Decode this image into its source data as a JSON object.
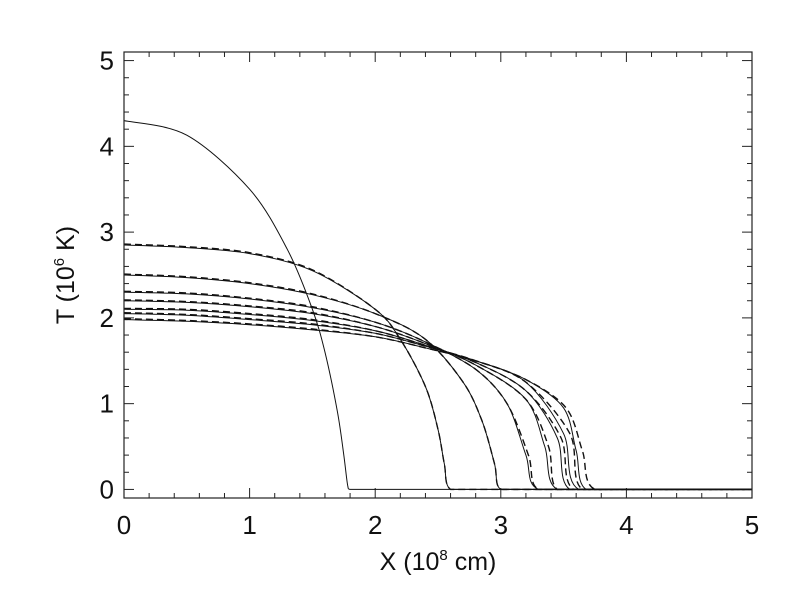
{
  "chart_data": {
    "type": "line",
    "xlabel": {
      "base": "X (10",
      "sup": "8",
      "tail": " cm)"
    },
    "ylabel": {
      "base": "T (10",
      "sup": "6",
      "tail": " K)"
    },
    "xlim": [
      0,
      5
    ],
    "ylim": [
      -0.1,
      5.1
    ],
    "xticks": [
      0,
      1,
      2,
      3,
      4,
      5
    ],
    "yticks": [
      0,
      1,
      2,
      3,
      4,
      5
    ],
    "grid": false,
    "series": [
      {
        "style": "solid",
        "x": [
          0,
          0.5,
          1.0,
          1.3,
          1.5,
          1.6,
          1.7,
          1.75,
          1.78,
          1.8,
          5.0
        ],
        "y": [
          4.3,
          4.13,
          3.5,
          2.8,
          2.1,
          1.6,
          0.9,
          0.4,
          0.05,
          0.0,
          0.0
        ]
      },
      {
        "style": "solid",
        "x": [
          0,
          0.5,
          1.0,
          1.5,
          2.0,
          2.2,
          2.4,
          2.5,
          2.55,
          2.6,
          5.0
        ],
        "y": [
          2.85,
          2.82,
          2.75,
          2.55,
          2.1,
          1.75,
          1.2,
          0.7,
          0.3,
          0.0,
          0.0
        ]
      },
      {
        "style": "solid",
        "x": [
          0,
          0.5,
          1.0,
          1.5,
          2.0,
          2.4,
          2.7,
          2.85,
          2.95,
          3.0,
          5.0
        ],
        "y": [
          2.5,
          2.47,
          2.4,
          2.27,
          2.05,
          1.75,
          1.25,
          0.8,
          0.3,
          0.0,
          0.0
        ]
      },
      {
        "style": "solid",
        "x": [
          0,
          0.5,
          1.0,
          1.5,
          2.0,
          2.4,
          2.8,
          3.05,
          3.2,
          3.3,
          5.0
        ],
        "y": [
          2.3,
          2.28,
          2.22,
          2.12,
          1.95,
          1.72,
          1.4,
          1.0,
          0.4,
          0.0,
          0.0
        ]
      },
      {
        "style": "solid",
        "x": [
          0,
          0.5,
          1.0,
          1.5,
          2.0,
          2.4,
          2.8,
          3.2,
          3.35,
          3.45,
          5.0
        ],
        "y": [
          2.2,
          2.18,
          2.13,
          2.05,
          1.9,
          1.7,
          1.45,
          1.05,
          0.5,
          0.0,
          0.0
        ]
      },
      {
        "style": "solid",
        "x": [
          0,
          0.5,
          1.0,
          1.5,
          2.0,
          2.4,
          2.8,
          3.2,
          3.45,
          3.55,
          5.0
        ],
        "y": [
          2.1,
          2.09,
          2.04,
          1.97,
          1.85,
          1.68,
          1.48,
          1.15,
          0.6,
          0.0,
          0.0
        ]
      },
      {
        "style": "solid",
        "x": [
          0,
          0.5,
          1.0,
          1.5,
          2.0,
          2.4,
          2.8,
          3.2,
          3.5,
          3.62,
          5.0
        ],
        "y": [
          2.05,
          2.03,
          1.98,
          1.92,
          1.82,
          1.67,
          1.5,
          1.25,
          0.65,
          0.0,
          0.0
        ]
      },
      {
        "style": "solid",
        "x": [
          0,
          0.5,
          1.0,
          1.5,
          2.0,
          2.4,
          2.8,
          3.2,
          3.5,
          3.6,
          3.68,
          5.0
        ],
        "y": [
          1.98,
          1.96,
          1.92,
          1.86,
          1.78,
          1.65,
          1.5,
          1.28,
          0.95,
          0.45,
          0.0,
          0.0
        ]
      },
      {
        "style": "dashed",
        "x": [
          0,
          0.5,
          1.0,
          1.5,
          2.0,
          2.2,
          2.4,
          2.5,
          2.55,
          2.6,
          5.0
        ],
        "y": [
          2.86,
          2.83,
          2.76,
          2.56,
          2.1,
          1.75,
          1.2,
          0.7,
          0.3,
          0.0,
          0.0
        ]
      },
      {
        "style": "dashed",
        "x": [
          0,
          0.5,
          1.0,
          1.5,
          2.0,
          2.4,
          2.7,
          2.85,
          2.95,
          3.0,
          5.0
        ],
        "y": [
          2.51,
          2.48,
          2.41,
          2.28,
          2.05,
          1.75,
          1.25,
          0.8,
          0.3,
          0.0,
          0.0
        ]
      },
      {
        "style": "dashed",
        "x": [
          0,
          0.5,
          1.0,
          1.5,
          2.0,
          2.4,
          2.8,
          3.05,
          3.22,
          3.3,
          5.0
        ],
        "y": [
          2.31,
          2.29,
          2.23,
          2.13,
          1.95,
          1.72,
          1.4,
          1.0,
          0.4,
          0.0,
          0.0
        ]
      },
      {
        "style": "dashed",
        "x": [
          0,
          0.5,
          1.0,
          1.5,
          2.0,
          2.4,
          2.8,
          3.2,
          3.38,
          3.45,
          5.0
        ],
        "y": [
          2.21,
          2.19,
          2.14,
          2.06,
          1.9,
          1.7,
          1.45,
          1.05,
          0.5,
          0.0,
          0.0
        ]
      },
      {
        "style": "dashed",
        "x": [
          0,
          0.5,
          1.0,
          1.5,
          2.0,
          2.4,
          2.8,
          3.2,
          3.48,
          3.58,
          5.0
        ],
        "y": [
          2.11,
          2.1,
          2.05,
          1.98,
          1.85,
          1.68,
          1.48,
          1.15,
          0.6,
          0.0,
          0.0
        ]
      },
      {
        "style": "dashed",
        "x": [
          0,
          0.5,
          1.0,
          1.5,
          2.0,
          2.4,
          2.8,
          3.2,
          3.55,
          3.65,
          5.0
        ],
        "y": [
          2.06,
          2.04,
          1.99,
          1.93,
          1.82,
          1.67,
          1.5,
          1.25,
          0.65,
          0.0,
          0.0
        ]
      },
      {
        "style": "dashed",
        "x": [
          0,
          0.5,
          1.0,
          1.5,
          2.0,
          2.4,
          2.8,
          3.2,
          3.52,
          3.65,
          3.75,
          5.0
        ],
        "y": [
          1.99,
          1.97,
          1.93,
          1.87,
          1.78,
          1.65,
          1.5,
          1.28,
          0.95,
          0.45,
          0.0,
          0.0
        ]
      }
    ]
  }
}
